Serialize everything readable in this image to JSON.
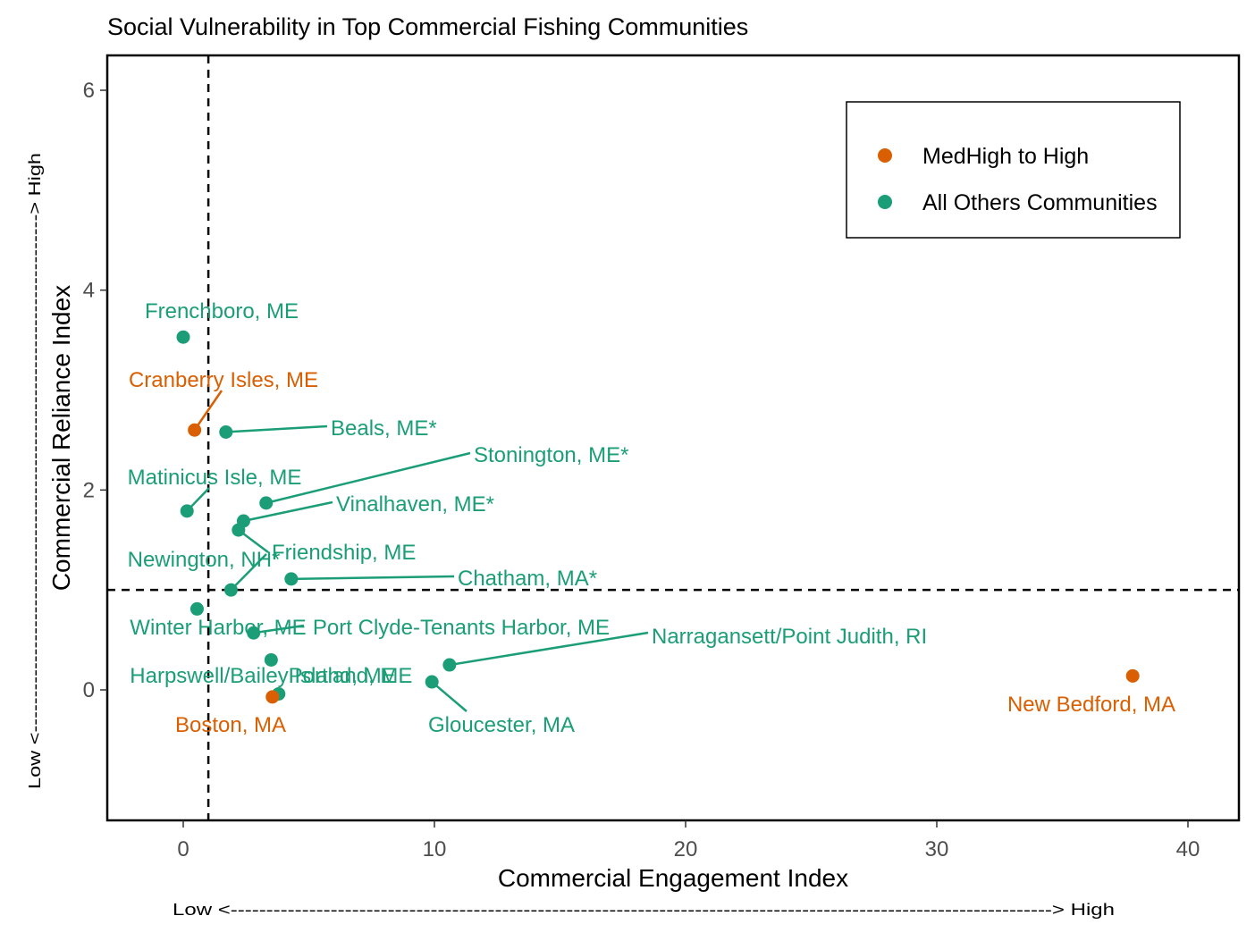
{
  "chart_data": {
    "type": "scatter",
    "title": "Social Vulnerability in Top Commercial Fishing Communities",
    "xlabel": "Commercial Engagement Index",
    "ylabel": "Commercial Reliance Index",
    "x_arrow_label": "Low <-------------------------------------------------------------------------------------------------------------------> High",
    "y_arrow_label": "Low <--------------------------------------------------------------------------> High",
    "xlim": [
      -3,
      42
    ],
    "ylim": [
      -1.3,
      6.35
    ],
    "xticks": [
      0,
      10,
      20,
      30,
      40
    ],
    "yticks": [
      0,
      2,
      4,
      6
    ],
    "reference_lines": {
      "vertical_x": 1,
      "horizontal_y": 1
    },
    "grid": false,
    "legend_position": "top-right",
    "colors": {
      "MedHigh to High": "#D95F02",
      "All Others Communities": "#1B9E77"
    },
    "series": [
      {
        "name": "MedHigh to High",
        "color": "#D95F02"
      },
      {
        "name": "All Others Communities",
        "color": "#1B9E77"
      }
    ],
    "points": [
      {
        "label": "Frenchboro, ME",
        "x": 0.0,
        "y": 3.53,
        "group": "All Others Communities"
      },
      {
        "label": "Cranberry Isles, ME",
        "x": 0.45,
        "y": 2.6,
        "group": "MedHigh to High"
      },
      {
        "label": "Beals, ME*",
        "x": 1.7,
        "y": 2.58,
        "group": "All Others Communities"
      },
      {
        "label": "Stonington, ME*",
        "x": 3.3,
        "y": 1.87,
        "group": "All Others Communities"
      },
      {
        "label": "Matinicus Isle, ME",
        "x": 0.15,
        "y": 1.79,
        "group": "All Others Communities"
      },
      {
        "label": "Vinalhaven, ME*",
        "x": 2.4,
        "y": 1.69,
        "group": "All Others Communities"
      },
      {
        "label": "Friendship, ME",
        "x": 2.2,
        "y": 1.6,
        "group": "All Others Communities"
      },
      {
        "label": "Chatham, MA*",
        "x": 4.3,
        "y": 1.11,
        "group": "All Others Communities"
      },
      {
        "label": "Newington, NH*",
        "x": 1.9,
        "y": 1.0,
        "group": "All Others Communities"
      },
      {
        "label": "Winter Harbor, ME",
        "x": 0.55,
        "y": 0.81,
        "group": "All Others Communities"
      },
      {
        "label": "Port Clyde-Tenants Harbor, ME",
        "x": 2.8,
        "y": 0.57,
        "group": "All Others Communities"
      },
      {
        "label": "Harpswell/Bailey Island, ME",
        "x": 3.5,
        "y": 0.3,
        "group": "All Others Communities"
      },
      {
        "label": "Portland, ME",
        "x": 3.8,
        "y": -0.04,
        "group": "All Others Communities"
      },
      {
        "label": "Boston, MA",
        "x": 3.55,
        "y": -0.07,
        "group": "MedHigh to High"
      },
      {
        "label": "Narragansett/Point Judith, RI",
        "x": 10.6,
        "y": 0.25,
        "group": "All Others Communities"
      },
      {
        "label": "Gloucester, MA",
        "x": 9.9,
        "y": 0.08,
        "group": "All Others Communities"
      },
      {
        "label": "New Bedford, MA",
        "x": 37.8,
        "y": 0.14,
        "group": "MedHigh to High"
      }
    ]
  }
}
